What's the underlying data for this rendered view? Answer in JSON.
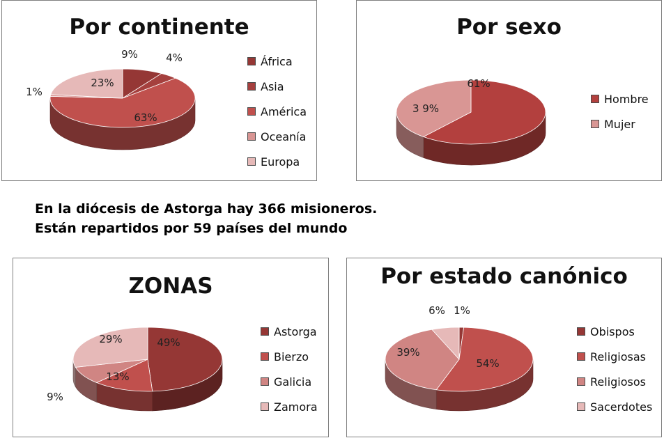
{
  "caption": {
    "line1": "En la diócesis de Astorga hay 366 misioneros.",
    "line2": "Están repartidos por 59 países del mundo"
  },
  "chart_data": [
    {
      "type": "pie",
      "title": "Por continente",
      "categories": [
        "África",
        "Asia",
        "América",
        "Oceanía",
        "Europa"
      ],
      "values": [
        9,
        4,
        63,
        1,
        23
      ],
      "value_labels": [
        "9%",
        "4%",
        "63%",
        "1%",
        "23%"
      ],
      "colors": [
        "#953735",
        "#a5403e",
        "#c0504d",
        "#d89593",
        "#e6b9b8"
      ],
      "legend": "right"
    },
    {
      "type": "pie",
      "title": "Por sexo",
      "categories": [
        "Hombre",
        "Mujer"
      ],
      "values": [
        61,
        39
      ],
      "value_labels": [
        "61%",
        "3 9%"
      ],
      "colors": [
        "#b3403e",
        "#d99694"
      ],
      "legend": "right"
    },
    {
      "type": "pie",
      "title": "ZONAS",
      "categories": [
        "Astorga",
        "Bierzo",
        "Galicia",
        "Zamora"
      ],
      "values": [
        49,
        13,
        9,
        29
      ],
      "value_labels": [
        "49%",
        "13%",
        "9%",
        "29%"
      ],
      "colors": [
        "#953735",
        "#c0504d",
        "#d08583",
        "#e6b9b8"
      ],
      "legend": "right"
    },
    {
      "type": "pie",
      "title": "Por estado canónico",
      "categories": [
        "Obispos",
        "Religiosas",
        "Religiosos",
        "Sacerdotes"
      ],
      "values": [
        1,
        54,
        39,
        6
      ],
      "value_labels": [
        "1%",
        "54%",
        "39%",
        "6%"
      ],
      "colors": [
        "#953735",
        "#c0504d",
        "#d08583",
        "#e6b9b8"
      ],
      "legend": "right"
    }
  ]
}
